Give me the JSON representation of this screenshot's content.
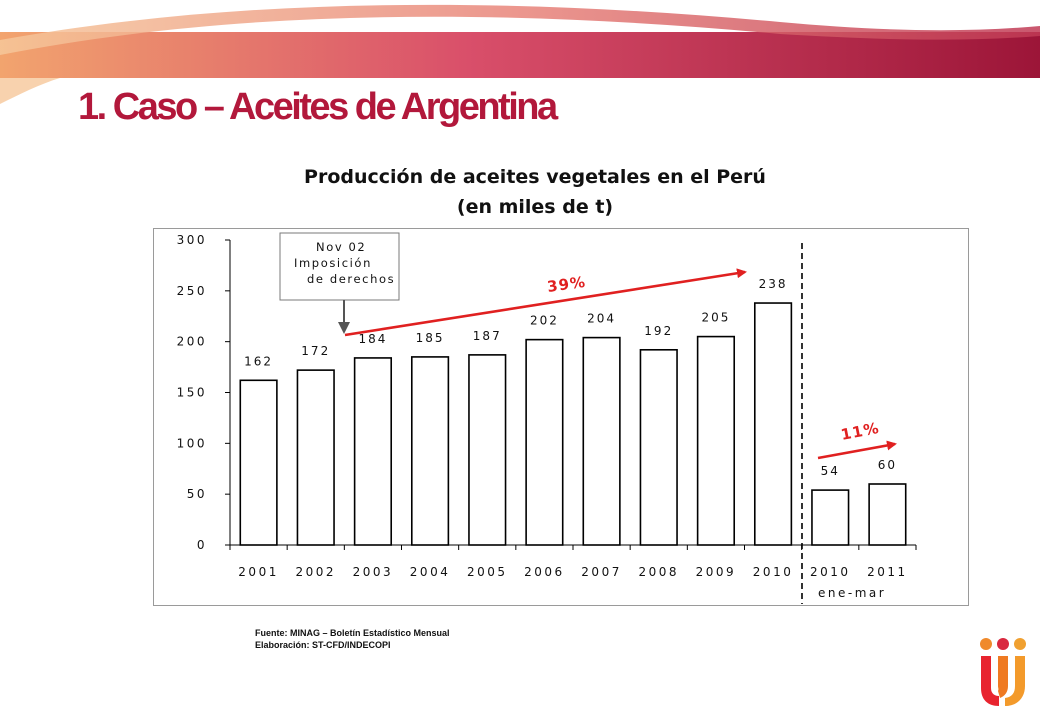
{
  "slide": {
    "title": "1. Caso – Aceites de Argentina",
    "footer_source": "Fuente: MINAG – Boletín Estadístico Mensual",
    "footer_elaboration": "Elaboración: ST-CFD/INDECOPI"
  },
  "colors": {
    "title": "#b2183b",
    "banner_start": "#f2a46e",
    "banner_end": "#9c1538",
    "trend_arrow": "#e02020",
    "bar_fill": "#ffffff",
    "bar_stroke": "#000000"
  },
  "chart_data": {
    "type": "bar",
    "title": "Producción de aceites vegetales en el Perú",
    "subtitle": "(en miles de t)",
    "categories": [
      "2001",
      "2002",
      "2003",
      "2004",
      "2005",
      "2006",
      "2007",
      "2008",
      "2009",
      "2010",
      "2010",
      "2011"
    ],
    "period_label": "ene-mar",
    "values": [
      162,
      172,
      184,
      185,
      187,
      202,
      204,
      192,
      205,
      238,
      54,
      60
    ],
    "ylim": [
      0,
      300
    ],
    "yticks": [
      "0",
      "50",
      "100",
      "150",
      "200",
      "250",
      "300"
    ],
    "grid": false,
    "legend": "none",
    "annotations": {
      "callout": [
        "Nov 02",
        "Imposición",
        "de derechos"
      ],
      "trend_annual": "39%",
      "trend_quarter": "11%"
    }
  }
}
